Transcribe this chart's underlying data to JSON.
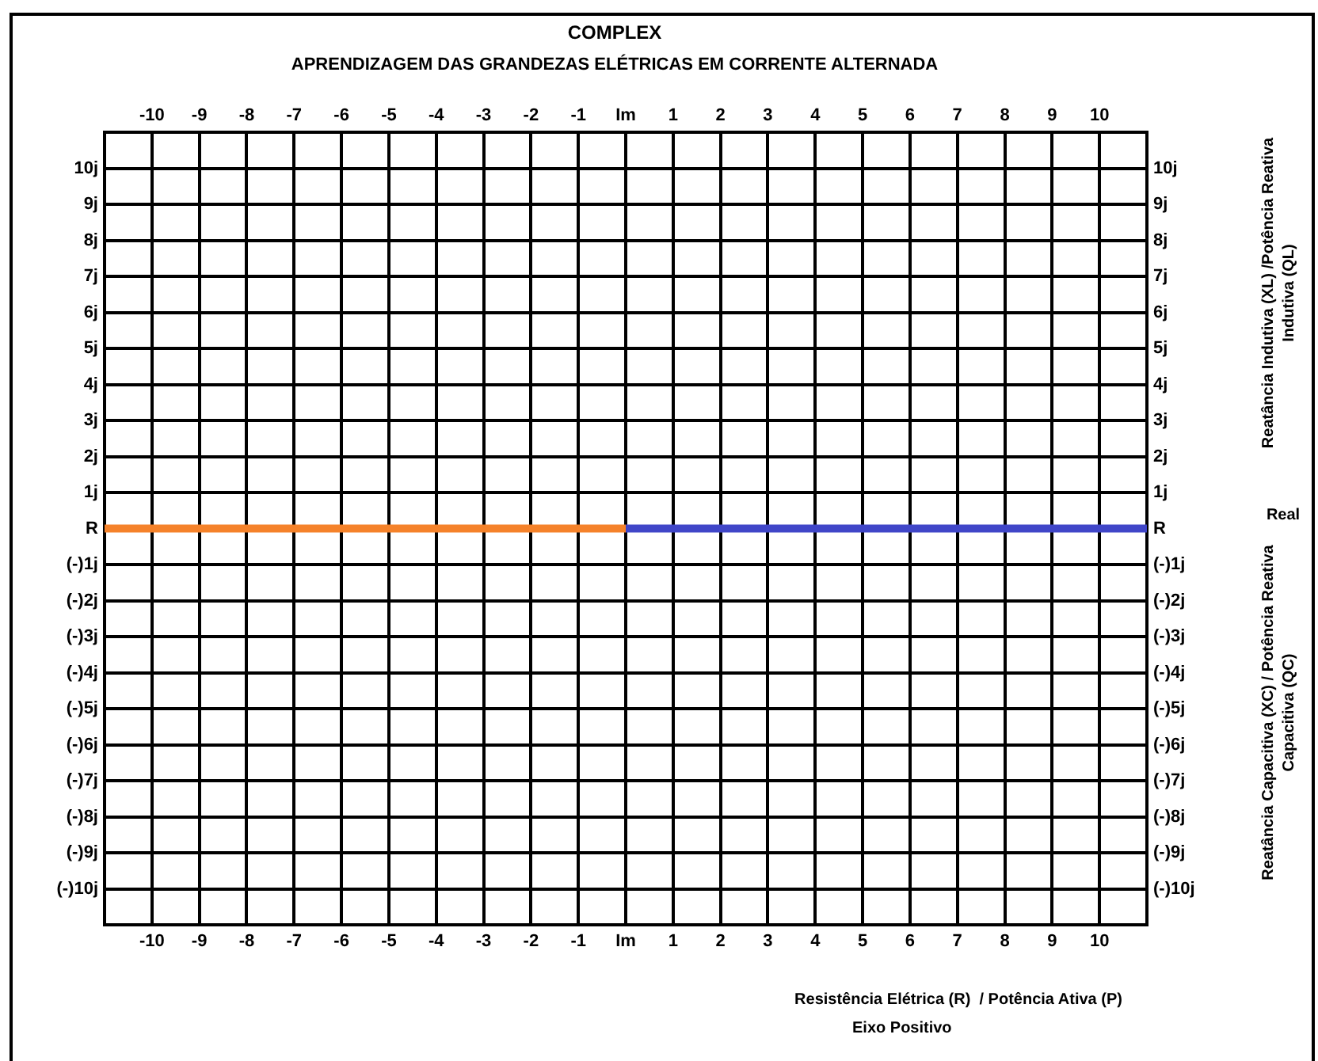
{
  "chart_data": {
    "type": "line",
    "title": "COMPLEX",
    "subtitle": "APRENDIZAGEM DAS GRANDEZAS ELÉTRICAS EM CORRENTE ALTERNADA",
    "xlabel": "Resistência Elétrica (R)  / Potência Ativa (P)",
    "annotations": [
      "Eixo Positivo",
      "Reatância Indutiva (XL) /Potência Reativa Indutiva (QL)",
      "Real",
      "Reatância Capacitiva (XC) / Potência Reativa Capacitiva (QC)"
    ],
    "series": [
      {
        "color": "#f5822a",
        "x": [
          -11,
          0
        ],
        "values": [
          0,
          0
        ]
      },
      {
        "color": "#4046c8",
        "x": [
          0,
          11
        ],
        "values": [
          0,
          0
        ]
      }
    ],
    "xlim": [
      -11,
      11
    ],
    "xticks": [
      -10,
      -9,
      -8,
      -7,
      -6,
      -5,
      -4,
      -3,
      -2,
      -1,
      {
        "value": 0,
        "label": "Im"
      },
      1,
      2,
      3,
      4,
      5,
      6,
      7,
      8,
      9,
      10
    ],
    "x2lim": [
      -11,
      11
    ],
    "x2ticks": [
      -10,
      -9,
      -8,
      -7,
      -6,
      -5,
      -4,
      -3,
      -2,
      -1,
      {
        "value": 0,
        "label": "Im"
      },
      1,
      2,
      3,
      4,
      5,
      6,
      7,
      8,
      9,
      10
    ],
    "ylim": [
      -11,
      11
    ],
    "yticks": [
      {
        "value": -10,
        "label": "(-)10j"
      },
      {
        "value": -9,
        "label": "(-)9j"
      },
      {
        "value": -8,
        "label": "(-)8j"
      },
      {
        "value": -7,
        "label": "(-)7j"
      },
      {
        "value": -6,
        "label": "(-)6j"
      },
      {
        "value": -5,
        "label": "(-)5j"
      },
      {
        "value": -4,
        "label": "(-)4j"
      },
      {
        "value": -3,
        "label": "(-)3j"
      },
      {
        "value": -2,
        "label": "(-)2j"
      },
      {
        "value": -1,
        "label": "(-)1j"
      },
      {
        "value": 0,
        "label": "R"
      },
      {
        "value": 1,
        "label": "1j"
      },
      {
        "value": 2,
        "label": "2j"
      },
      {
        "value": 3,
        "label": "3j"
      },
      {
        "value": 4,
        "label": "4j"
      },
      {
        "value": 5,
        "label": "5j"
      },
      {
        "value": 6,
        "label": "6j"
      },
      {
        "value": 7,
        "label": "7j"
      },
      {
        "value": 8,
        "label": "8j"
      },
      {
        "value": 9,
        "label": "9j"
      },
      {
        "value": 10,
        "label": "10j"
      }
    ],
    "y2lim": [
      -11,
      11
    ],
    "y2ticks": [
      {
        "value": -10,
        "label": "(-)10j"
      },
      {
        "value": -9,
        "label": "(-)9j"
      },
      {
        "value": -8,
        "label": "(-)8j"
      },
      {
        "value": -7,
        "label": "(-)7j"
      },
      {
        "value": -6,
        "label": "(-)6j"
      },
      {
        "value": -5,
        "label": "(-)5j"
      },
      {
        "value": -4,
        "label": "(-)4j"
      },
      {
        "value": -3,
        "label": "(-)3j"
      },
      {
        "value": -2,
        "label": "(-)2j"
      },
      {
        "value": -1,
        "label": "(-)1j"
      },
      {
        "value": 0,
        "label": "R"
      },
      {
        "value": 1,
        "label": "1j"
      },
      {
        "value": 2,
        "label": "2j"
      },
      {
        "value": 3,
        "label": "3j"
      },
      {
        "value": 4,
        "label": "4j"
      },
      {
        "value": 5,
        "label": "5j"
      },
      {
        "value": 6,
        "label": "6j"
      },
      {
        "value": 7,
        "label": "7j"
      },
      {
        "value": 8,
        "label": "8j"
      },
      {
        "value": 9,
        "label": "9j"
      },
      {
        "value": 10,
        "label": "10j"
      }
    ],
    "grid": true,
    "legend": false,
    "marker": "none",
    "line_style": "solid"
  }
}
